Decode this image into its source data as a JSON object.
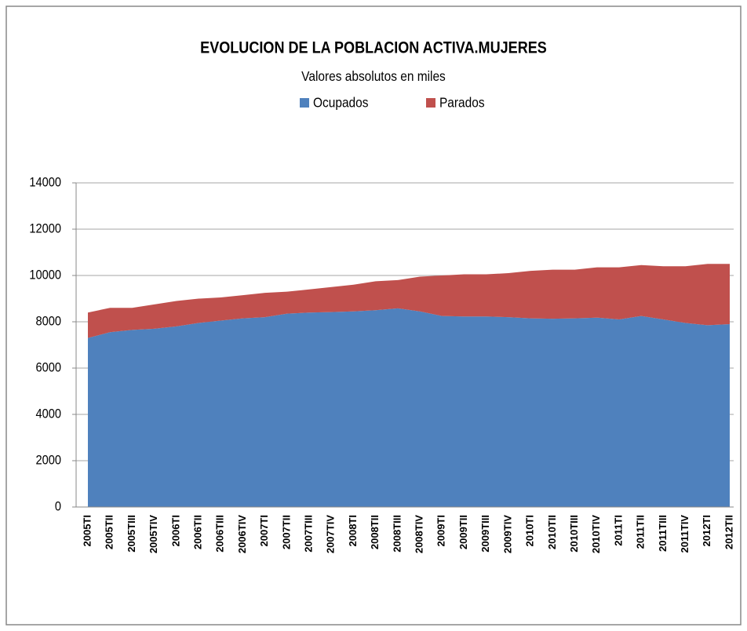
{
  "chart_data": {
    "type": "stacked-area",
    "title": "EVOLUCION DE LA POBLACION ACTIVA.MUJERES",
    "subtitle": "Valores absolutos en miles",
    "categories": [
      "2005TI",
      "2005TII",
      "2005TIII",
      "2005TIV",
      "2006TI",
      "2006TII",
      "2006TIII",
      "2006TIV",
      "2007TI",
      "2007TII",
      "2007TIII",
      "2007TIV",
      "2008TI",
      "2008TII",
      "2008TIII",
      "2008TIV",
      "2009TI",
      "2009TII",
      "2009TIII",
      "2009TIV",
      "2010TI",
      "2010TII",
      "2010TIII",
      "2010TIV",
      "2011TI",
      "2011TII",
      "2011TIII",
      "2011TIV",
      "2012TI",
      "2012TII"
    ],
    "series": [
      {
        "name": "Ocupados",
        "color": "#4f81bd",
        "values": [
          7300,
          7550,
          7650,
          7700,
          7800,
          7950,
          8050,
          8150,
          8200,
          8350,
          8400,
          8420,
          8450,
          8500,
          8580,
          8450,
          8250,
          8230,
          8230,
          8200,
          8150,
          8130,
          8150,
          8180,
          8100,
          8250,
          8100,
          7950,
          7850,
          7900
        ]
      },
      {
        "name": "Parados",
        "color": "#c0504d",
        "values": [
          1100,
          1050,
          950,
          1050,
          1100,
          1050,
          1000,
          1000,
          1050,
          950,
          1000,
          1080,
          1150,
          1250,
          1220,
          1500,
          1750,
          1820,
          1820,
          1900,
          2050,
          2120,
          2100,
          2170,
          2250,
          2200,
          2300,
          2450,
          2650,
          2600
        ]
      }
    ],
    "ylim": [
      0,
      14000
    ],
    "yticks": [
      0,
      2000,
      4000,
      6000,
      8000,
      10000,
      12000,
      14000
    ],
    "grid": true
  }
}
